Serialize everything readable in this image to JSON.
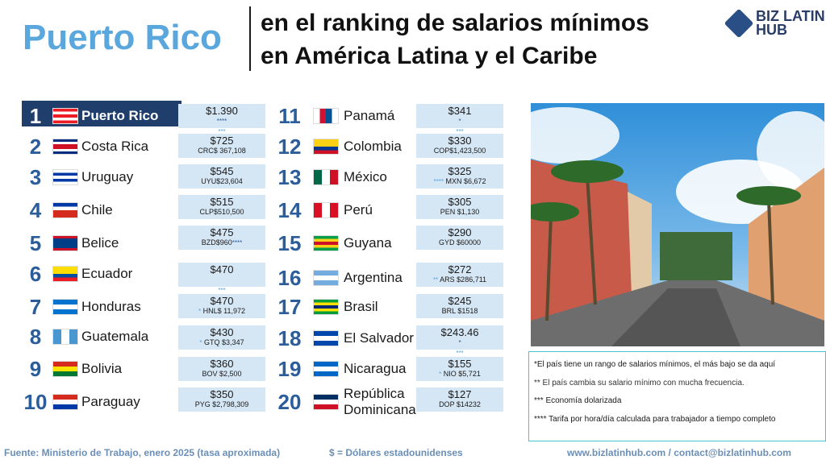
{
  "header": {
    "country": "Puerto Rico",
    "title_line1": "en el ranking de salarios mínimos",
    "title_line2": "en América Latina y el Caribe",
    "logo_line1": "BIZ LATIN",
    "logo_line2": "HUB"
  },
  "ranking": [
    {
      "rank": "1",
      "country": "Puerto Rico",
      "usd": "$1.390",
      "local": "",
      "stars": "****",
      "stars2": "***",
      "flag": [
        "#ed1c24",
        "#fff",
        "#ed1c24",
        "#fff",
        "#ed1c24"
      ],
      "tri": "#0050f0"
    },
    {
      "rank": "2",
      "country": "Costa Rica",
      "usd": "$725",
      "local": "CRC$ 367,108",
      "flag": [
        "#002b7f",
        "#fff",
        "#ce1126",
        "#ce1126",
        "#fff",
        "#002b7f"
      ]
    },
    {
      "rank": "3",
      "country": "Uruguay",
      "usd": "$545",
      "local": "UYU$23,604",
      "flag": [
        "#fff",
        "#0038a8",
        "#fff",
        "#0038a8",
        "#fff"
      ]
    },
    {
      "rank": "4",
      "country": "Chile",
      "usd": "$515",
      "local": "CLP$510,500",
      "flag": [
        "#0039a6",
        "#fff",
        "#d52b1e",
        "#d52b1e"
      ]
    },
    {
      "rank": "5",
      "country": "Belice",
      "usd": "$475",
      "local": "BZD$960",
      "stars": "****",
      "flag": [
        "#ce1126",
        "#003f87",
        "#003f87",
        "#003f87",
        "#003f87",
        "#ce1126"
      ]
    },
    {
      "rank": "6",
      "country": "Ecuador",
      "usd": "$470",
      "local": "",
      "stars2": "***",
      "flag": [
        "#ffdd00",
        "#ffdd00",
        "#034ea2",
        "#ed1c24"
      ]
    },
    {
      "rank": "7",
      "country": "Honduras",
      "usd": "$470",
      "local": "HNL$ 11,972",
      "pre": "*",
      "flag": [
        "#0073cf",
        "#fff",
        "#0073cf"
      ]
    },
    {
      "rank": "8",
      "country": "Guatemala",
      "usd": "$430",
      "local": "GTQ $3,347",
      "pre": "*",
      "flag": [
        "#4997d0",
        "#fff",
        "#4997d0"
      ],
      "vertical": true
    },
    {
      "rank": "9",
      "country": "Bolivia",
      "usd": "$360",
      "local": "BOV $2,500",
      "flag": [
        "#d52b1e",
        "#f9e300",
        "#007934"
      ]
    },
    {
      "rank": "10",
      "country": "Paraguay",
      "usd": "$350",
      "local": "PYG $2,798,309",
      "flag": [
        "#d52b1e",
        "#fff",
        "#0038a8"
      ]
    },
    {
      "rank": "11",
      "country": "Panamá",
      "usd": "$341",
      "local": "",
      "stars": "*",
      "stars2": "***",
      "flag": [
        "#fff",
        "#d21034",
        "#005293",
        "#fff"
      ],
      "vertical": true
    },
    {
      "rank": "12",
      "country": "Colombia",
      "usd": "$330",
      "local": "COP$1,423,500",
      "flag": [
        "#fcd116",
        "#fcd116",
        "#003893",
        "#ce1126"
      ]
    },
    {
      "rank": "13",
      "country": "México",
      "usd": "$325",
      "local": "MXN $6,672",
      "pre": "****",
      "flag": [
        "#006847",
        "#fff",
        "#ce1126"
      ],
      "vertical": true
    },
    {
      "rank": "14",
      "country": "Perú",
      "usd": "$305",
      "local": "PEN $1,130",
      "flag": [
        "#d91023",
        "#fff",
        "#d91023"
      ],
      "vertical": true
    },
    {
      "rank": "15",
      "country": "Guyana",
      "usd": "$290",
      "local": "GYD $60000",
      "flag": [
        "#009e49",
        "#fcd116",
        "#ce1126",
        "#fcd116",
        "#009e49"
      ]
    },
    {
      "rank": "16",
      "country": "Argentina",
      "usd": "$272",
      "local": "ARS $286,711",
      "pre": "**",
      "flag": [
        "#74acdf",
        "#fff",
        "#74acdf"
      ]
    },
    {
      "rank": "17",
      "country": "Brasil",
      "usd": "$245",
      "local": "BRL $1518",
      "flag": [
        "#009c3b",
        "#ffdf00",
        "#002776",
        "#ffdf00",
        "#009c3b"
      ]
    },
    {
      "rank": "18",
      "country": "El Salvador",
      "usd": "$243.46",
      "local": "",
      "stars": "*",
      "stars2": "***",
      "flag": [
        "#0047ab",
        "#fff",
        "#0047ab"
      ]
    },
    {
      "rank": "19",
      "country": "Nicaragua",
      "usd": "$155",
      "local": "NIO  $5,721",
      "pre": "*",
      "flag": [
        "#0067c6",
        "#fff",
        "#0067c6"
      ]
    },
    {
      "rank": "20",
      "country": "República Dominicana",
      "usd": "$127",
      "local": "DOP $14232",
      "flag": [
        "#002d62",
        "#fff",
        "#ce1126"
      ]
    }
  ],
  "notes": [
    "*El país tiene un rango de salarios mínimos, el más bajo se da aquí",
    "** El país cambia su salario mínimo con mucha frecuencia.",
    "*** Economía dolarizada",
    "**** Tarifa por hora/día calculada para trabajador a tiempo completo"
  ],
  "footer": {
    "source": "Fuente: Ministerio de Trabajo, enero 2025 (tasa aproximada)",
    "currency": "$ = Dólares estadounidenses",
    "contact": "www.bizlatinhub.com / contact@bizlatinhub.com"
  }
}
